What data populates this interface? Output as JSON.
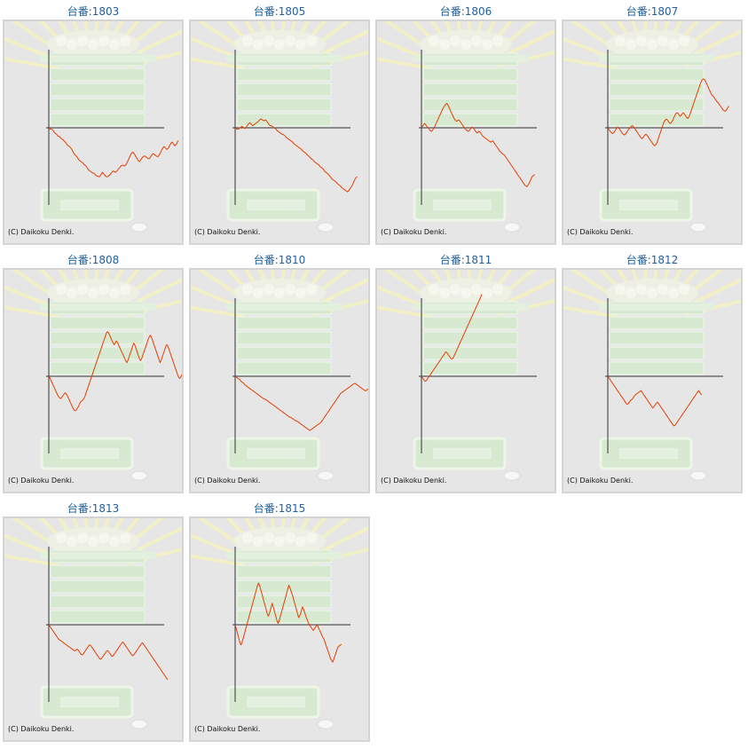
{
  "copyright": "(C) Daikoku Denki.",
  "colors": {
    "line": "#e53d00",
    "axis": "#333333",
    "title": "#1f5f9f",
    "background": "#e6e6e6"
  },
  "chart_data": [
    {
      "type": "line",
      "title": "台番:1803",
      "values": [
        0,
        -1,
        -2,
        -2,
        -3,
        -5,
        -7,
        -8,
        -9,
        -11,
        -12,
        -12,
        -14,
        -15,
        -16,
        -17,
        -19,
        -20,
        -22,
        -24,
        -25,
        -26,
        -27,
        -29,
        -31,
        -34,
        -36,
        -38,
        -39,
        -41,
        -43,
        -45,
        -46,
        -47,
        -48,
        -49,
        -51,
        -52,
        -53,
        -55,
        -57,
        -59,
        -60,
        -61,
        -62,
        -63,
        -63,
        -64,
        -66,
        -67,
        -67,
        -68,
        -68,
        -66,
        -64,
        -62,
        -64,
        -65,
        -67,
        -68,
        -68,
        -67,
        -66,
        -65,
        -63,
        -61,
        -60,
        -61,
        -62,
        -61,
        -60,
        -58,
        -56,
        -55,
        -53,
        -52,
        -52,
        -53,
        -53,
        -51,
        -49,
        -46,
        -43,
        -40,
        -37,
        -35,
        -34,
        -35,
        -37,
        -40,
        -42,
        -44,
        -46,
        -47,
        -45,
        -43,
        -41,
        -40,
        -39,
        -40,
        -41,
        -42,
        -43,
        -43,
        -41,
        -39,
        -37,
        -36,
        -37,
        -38,
        -39,
        -40,
        -40,
        -38,
        -36,
        -33,
        -30,
        -28,
        -26,
        -27,
        -29,
        -30,
        -29,
        -27,
        -24,
        -22,
        -20,
        -21,
        -23,
        -25,
        -24,
        -22,
        -19,
        -18
      ]
    },
    {
      "type": "line",
      "title": "台番:1805",
      "values": [
        0,
        -1,
        -2,
        -2,
        -1,
        0,
        1,
        2,
        1,
        0,
        -1,
        0,
        2,
        4,
        6,
        7,
        6,
        4,
        3,
        4,
        5,
        6,
        7,
        8,
        9,
        11,
        12,
        12,
        11,
        10,
        10,
        11,
        10,
        8,
        6,
        4,
        3,
        3,
        2,
        1,
        0,
        -1,
        -2,
        -4,
        -5,
        -6,
        -7,
        -8,
        -9,
        -9,
        -10,
        -11,
        -13,
        -14,
        -15,
        -16,
        -17,
        -18,
        -19,
        -20,
        -22,
        -23,
        -24,
        -25,
        -26,
        -27,
        -28,
        -29,
        -30,
        -32,
        -33,
        -34,
        -35,
        -36,
        -38,
        -39,
        -40,
        -42,
        -43,
        -44,
        -45,
        -47,
        -48,
        -49,
        -50,
        -51,
        -52,
        -54,
        -55,
        -56,
        -57,
        -59,
        -61,
        -62,
        -63,
        -64,
        -66,
        -67,
        -69,
        -71,
        -72,
        -73,
        -74,
        -75,
        -76,
        -78,
        -79,
        -80,
        -81,
        -83,
        -84,
        -85,
        -86,
        -87,
        -88,
        -89,
        -88,
        -86,
        -84,
        -82,
        -80,
        -77,
        -74,
        -71,
        -69,
        -68
      ]
    },
    {
      "type": "line",
      "title": "台番:1806",
      "values": [
        0,
        2,
        4,
        6,
        5,
        3,
        1,
        0,
        -2,
        -4,
        -5,
        -4,
        -2,
        0,
        3,
        6,
        9,
        12,
        15,
        18,
        21,
        24,
        27,
        29,
        31,
        33,
        34,
        32,
        29,
        26,
        23,
        20,
        17,
        14,
        12,
        10,
        9,
        10,
        11,
        10,
        8,
        6,
        4,
        2,
        0,
        -2,
        -3,
        -4,
        -5,
        -4,
        -2,
        0,
        1,
        0,
        -2,
        -4,
        -6,
        -7,
        -6,
        -5,
        -6,
        -8,
        -10,
        -12,
        -13,
        -14,
        -15,
        -16,
        -17,
        -18,
        -19,
        -20,
        -19,
        -18,
        -20,
        -22,
        -24,
        -26,
        -28,
        -30,
        -32,
        -34,
        -35,
        -36,
        -37,
        -38,
        -40,
        -42,
        -44,
        -46,
        -48,
        -50,
        -52,
        -54,
        -56,
        -58,
        -60,
        -62,
        -64,
        -66,
        -68,
        -70,
        -72,
        -74,
        -76,
        -78,
        -80,
        -81,
        -82,
        -80,
        -78,
        -75,
        -72,
        -69,
        -67,
        -66,
        -65
      ]
    },
    {
      "type": "line",
      "title": "台番:1807",
      "values": [
        0,
        -2,
        -4,
        -6,
        -7,
        -8,
        -7,
        -5,
        -3,
        -1,
        1,
        0,
        -2,
        -4,
        -6,
        -8,
        -9,
        -10,
        -9,
        -7,
        -5,
        -3,
        -1,
        0,
        2,
        3,
        2,
        0,
        -2,
        -4,
        -6,
        -8,
        -10,
        -12,
        -14,
        -15,
        -14,
        -12,
        -10,
        -9,
        -10,
        -12,
        -14,
        -16,
        -18,
        -20,
        -22,
        -24,
        -25,
        -24,
        -22,
        -18,
        -14,
        -10,
        -6,
        -2,
        2,
        6,
        9,
        11,
        12,
        11,
        9,
        7,
        6,
        7,
        9,
        12,
        15,
        18,
        20,
        21,
        20,
        18,
        16,
        17,
        19,
        21,
        20,
        18,
        16,
        14,
        13,
        15,
        18,
        22,
        26,
        30,
        34,
        38,
        42,
        46,
        50,
        54,
        58,
        62,
        65,
        67,
        68,
        67,
        65,
        62,
        59,
        56,
        53,
        50,
        47,
        45,
        44,
        42,
        40,
        38,
        36,
        35,
        33,
        31,
        29,
        27,
        25,
        24,
        23,
        24,
        26,
        28,
        30
      ]
    },
    {
      "type": "line",
      "title": "台番:1808",
      "values": [
        0,
        -2,
        -5,
        -8,
        -11,
        -14,
        -17,
        -20,
        -23,
        -26,
        -28,
        -30,
        -31,
        -30,
        -28,
        -26,
        -24,
        -23,
        -25,
        -27,
        -30,
        -33,
        -36,
        -39,
        -42,
        -45,
        -47,
        -48,
        -47,
        -45,
        -43,
        -40,
        -37,
        -35,
        -34,
        -33,
        -31,
        -28,
        -24,
        -20,
        -16,
        -12,
        -8,
        -4,
        0,
        4,
        8,
        12,
        16,
        20,
        24,
        28,
        32,
        36,
        40,
        44,
        48,
        52,
        56,
        60,
        62,
        61,
        58,
        55,
        52,
        49,
        46,
        44,
        46,
        49,
        48,
        45,
        42,
        39,
        36,
        33,
        30,
        27,
        24,
        21,
        19,
        22,
        26,
        30,
        34,
        38,
        42,
        46,
        44,
        40,
        36,
        32,
        28,
        24,
        22,
        24,
        28,
        32,
        36,
        40,
        44,
        48,
        52,
        55,
        57,
        55,
        51,
        47,
        43,
        39,
        35,
        31,
        27,
        23,
        19,
        22,
        26,
        30,
        34,
        38,
        42,
        44,
        42,
        38,
        34,
        30,
        26,
        22,
        18,
        14,
        10,
        6,
        2,
        -1,
        -3,
        -2,
        1,
        4,
        8,
        12,
        8,
        4,
        2,
        0,
        1,
        2,
        0,
        -2,
        -3,
        -2,
        0
      ]
    },
    {
      "type": "line",
      "title": "台番:1810",
      "values": [
        0,
        -1,
        -2,
        -3,
        -4,
        -5,
        -7,
        -8,
        -9,
        -10,
        -12,
        -13,
        -14,
        -15,
        -16,
        -17,
        -18,
        -19,
        -20,
        -21,
        -22,
        -23,
        -24,
        -25,
        -26,
        -27,
        -28,
        -29,
        -30,
        -31,
        -32,
        -32,
        -33,
        -34,
        -35,
        -36,
        -37,
        -38,
        -39,
        -40,
        -41,
        -42,
        -43,
        -44,
        -45,
        -46,
        -47,
        -48,
        -49,
        -50,
        -51,
        -52,
        -53,
        -54,
        -55,
        -56,
        -57,
        -57,
        -58,
        -59,
        -60,
        -61,
        -62,
        -62,
        -63,
        -64,
        -65,
        -66,
        -67,
        -68,
        -69,
        -70,
        -71,
        -72,
        -73,
        -74,
        -75,
        -75,
        -74,
        -73,
        -72,
        -71,
        -70,
        -69,
        -68,
        -67,
        -66,
        -65,
        -64,
        -62,
        -60,
        -58,
        -56,
        -54,
        -52,
        -50,
        -48,
        -46,
        -44,
        -42,
        -40,
        -38,
        -36,
        -34,
        -32,
        -30,
        -28,
        -26,
        -24,
        -23,
        -22,
        -21,
        -20,
        -19,
        -18,
        -17,
        -16,
        -15,
        -14,
        -13,
        -12,
        -11,
        -10,
        -10,
        -11,
        -12,
        -13,
        -14,
        -15,
        -16,
        -17,
        -18,
        -19,
        -20,
        -20,
        -19,
        -18,
        -17,
        -16,
        -15,
        -14,
        -13,
        -12,
        -11,
        -12,
        -13,
        -14,
        -15,
        -16,
        -17,
        -18,
        -19,
        -20,
        -21,
        -21,
        -20,
        -19,
        -18,
        -18,
        -19,
        -20
      ]
    },
    {
      "type": "line",
      "title": "台番:1811",
      "values": [
        0,
        -2,
        -4,
        -6,
        -7,
        -6,
        -4,
        -2,
        0,
        2,
        4,
        6,
        8,
        10,
        12,
        14,
        16,
        18,
        20,
        22,
        24,
        26,
        28,
        30,
        32,
        34,
        33,
        31,
        29,
        27,
        25,
        24,
        25,
        27,
        30,
        33,
        36,
        39,
        42,
        45,
        48,
        51,
        54,
        57,
        60,
        63,
        66,
        69,
        72,
        75,
        78,
        81,
        84,
        87,
        90,
        93,
        96,
        99,
        102,
        105,
        108,
        111,
        114
      ]
    },
    {
      "type": "line",
      "title": "台番:1812",
      "values": [
        0,
        -2,
        -4,
        -6,
        -8,
        -10,
        -12,
        -14,
        -16,
        -18,
        -20,
        -22,
        -24,
        -26,
        -28,
        -30,
        -32,
        -34,
        -36,
        -38,
        -39,
        -38,
        -36,
        -34,
        -33,
        -32,
        -30,
        -28,
        -26,
        -25,
        -24,
        -23,
        -22,
        -21,
        -20,
        -22,
        -24,
        -26,
        -28,
        -30,
        -32,
        -34,
        -36,
        -38,
        -40,
        -42,
        -44,
        -43,
        -41,
        -39,
        -37,
        -36,
        -38,
        -40,
        -42,
        -44,
        -46,
        -48,
        -50,
        -52,
        -54,
        -56,
        -58,
        -60,
        -62,
        -64,
        -66,
        -68,
        -69,
        -68,
        -66,
        -64,
        -62,
        -60,
        -58,
        -56,
        -54,
        -52,
        -50,
        -48,
        -46,
        -44,
        -42,
        -40,
        -38,
        -36,
        -34,
        -32,
        -30,
        -28,
        -26,
        -24,
        -22,
        -20,
        -22,
        -24,
        -26
      ]
    },
    {
      "type": "line",
      "title": "台番:1813",
      "values": [
        0,
        -2,
        -4,
        -6,
        -8,
        -10,
        -12,
        -14,
        -16,
        -18,
        -20,
        -21,
        -22,
        -23,
        -24,
        -25,
        -26,
        -27,
        -28,
        -29,
        -30,
        -31,
        -32,
        -33,
        -34,
        -35,
        -36,
        -36,
        -35,
        -34,
        -35,
        -37,
        -39,
        -41,
        -42,
        -41,
        -39,
        -37,
        -35,
        -33,
        -31,
        -29,
        -28,
        -29,
        -31,
        -33,
        -35,
        -37,
        -39,
        -41,
        -43,
        -45,
        -47,
        -48,
        -47,
        -45,
        -43,
        -41,
        -39,
        -37,
        -36,
        -37,
        -39,
        -41,
        -43,
        -44,
        -43,
        -41,
        -39,
        -37,
        -35,
        -33,
        -31,
        -29,
        -27,
        -25,
        -24,
        -26,
        -28,
        -30,
        -32,
        -34,
        -36,
        -38,
        -40,
        -42,
        -43,
        -42,
        -40,
        -38,
        -36,
        -34,
        -32,
        -30,
        -28,
        -26,
        -25,
        -27,
        -29,
        -31,
        -33,
        -35,
        -37,
        -39,
        -41,
        -43,
        -45,
        -47,
        -49,
        -51,
        -53,
        -55,
        -57,
        -59,
        -61,
        -63,
        -65,
        -67,
        -69,
        -71,
        -73,
        -75,
        -76
      ]
    },
    {
      "type": "line",
      "title": "台番:1815",
      "values": [
        0,
        -5,
        -10,
        -15,
        -20,
        -25,
        -28,
        -25,
        -20,
        -15,
        -10,
        -5,
        0,
        5,
        10,
        15,
        20,
        25,
        30,
        35,
        40,
        45,
        50,
        55,
        58,
        55,
        50,
        45,
        40,
        35,
        30,
        25,
        20,
        15,
        12,
        15,
        20,
        25,
        30,
        25,
        20,
        15,
        10,
        5,
        2,
        5,
        10,
        15,
        20,
        25,
        30,
        35,
        40,
        45,
        50,
        55,
        52,
        48,
        44,
        40,
        35,
        30,
        25,
        20,
        15,
        10,
        12,
        15,
        20,
        25,
        22,
        18,
        14,
        10,
        6,
        3,
        0,
        -2,
        -4,
        -6,
        -8,
        -6,
        -4,
        -2,
        0,
        -3,
        -6,
        -9,
        -12,
        -15,
        -18,
        -20,
        -24,
        -28,
        -32,
        -36,
        -40,
        -44,
        -48,
        -50,
        -52,
        -48,
        -44,
        -40,
        -36,
        -32,
        -30,
        -29,
        -28,
        -27
      ]
    }
  ]
}
